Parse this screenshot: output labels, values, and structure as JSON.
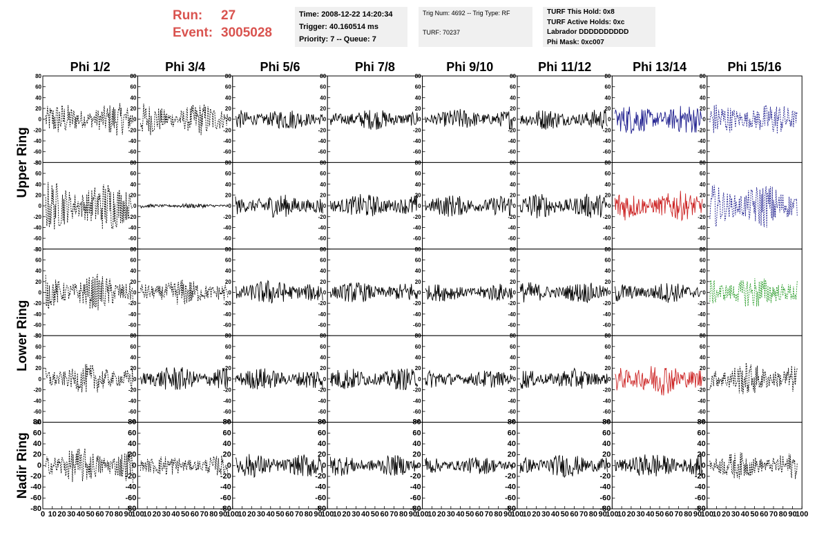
{
  "header": {
    "run_label": "Run:",
    "run_value": "27",
    "event_label": "Event:",
    "event_value": "3005028",
    "info1": [
      "Time: 2008-12-22 14:20:34",
      "Trigger: 40.160514 ms",
      "Priority: 7 -- Queue: 7"
    ],
    "info2": [
      "Trig Num: 4692 -- Trig Type: RF",
      "TURF: 70237"
    ],
    "info3": [
      "TURF This Hold: 0x8",
      "TURF Active Holds: 0xc",
      "Labrador DDDDDDDDDD",
      "Phi Mask: 0xc007"
    ],
    "colors": {
      "run_text": "#d9534f",
      "box_bg": "#f0f0f0"
    }
  },
  "chart_data": {
    "type": "line",
    "column_titles": [
      "Phi 1/2",
      "Phi 3/4",
      "Phi 5/6",
      "Phi 7/8",
      "Phi 9/10",
      "Phi 11/12",
      "Phi 13/14",
      "Phi 15/16"
    ],
    "row_groups": [
      {
        "label": "Upper Ring",
        "rows": [
          0,
          1
        ]
      },
      {
        "label": "Lower Ring",
        "rows": [
          2,
          3
        ]
      },
      {
        "label": "Nadir Ring",
        "rows": [
          4
        ]
      }
    ],
    "xlim": [
      0,
      100
    ],
    "ylim": [
      -80,
      80
    ],
    "y_ticks": [
      80,
      60,
      40,
      20,
      0,
      -20,
      -40,
      -60,
      -80
    ],
    "x_ticks": [
      0,
      10,
      20,
      30,
      40,
      50,
      60,
      70,
      80,
      90,
      100
    ],
    "series_colors": {
      "black": "#000000",
      "blue": "#1a1a8c",
      "red": "#cc2222",
      "green": "#229922"
    },
    "panels": [
      [
        {
          "style": "dashed",
          "color": "black",
          "amp": 22
        },
        {
          "style": "dashed",
          "color": "black",
          "amp": 22
        },
        {
          "style": "solid",
          "color": "black",
          "amp": 14
        },
        {
          "style": "solid",
          "color": "black",
          "amp": 14
        },
        {
          "style": "solid",
          "color": "black",
          "amp": 14
        },
        {
          "style": "solid",
          "color": "black",
          "amp": 14
        },
        {
          "style": "solid",
          "color": "blue",
          "amp": 20
        },
        {
          "style": "dashed",
          "color": "blue",
          "amp": 22
        }
      ],
      [
        {
          "style": "dashed",
          "color": "black",
          "amp": 34
        },
        {
          "style": "solid",
          "color": "black",
          "amp": 3
        },
        {
          "style": "solid",
          "color": "black",
          "amp": 16
        },
        {
          "style": "solid",
          "color": "black",
          "amp": 16
        },
        {
          "style": "solid",
          "color": "black",
          "amp": 15
        },
        {
          "style": "solid",
          "color": "black",
          "amp": 17
        },
        {
          "style": "solid",
          "color": "red",
          "amp": 20
        },
        {
          "style": "dashed",
          "color": "blue",
          "amp": 30
        }
      ],
      [
        {
          "style": "dashed",
          "color": "black",
          "amp": 24
        },
        {
          "style": "dashed",
          "color": "black",
          "amp": 18
        },
        {
          "style": "solid",
          "color": "black",
          "amp": 17
        },
        {
          "style": "solid",
          "color": "black",
          "amp": 14
        },
        {
          "style": "solid",
          "color": "black",
          "amp": 12
        },
        {
          "style": "solid",
          "color": "black",
          "amp": 14
        },
        {
          "style": "solid",
          "color": "black",
          "amp": 14
        },
        {
          "style": "dashed",
          "color": "green",
          "amp": 22
        }
      ],
      [
        {
          "style": "dashed",
          "color": "black",
          "amp": 20
        },
        {
          "style": "solid",
          "color": "black",
          "amp": 17
        },
        {
          "style": "solid",
          "color": "black",
          "amp": 15
        },
        {
          "style": "solid",
          "color": "black",
          "amp": 15
        },
        {
          "style": "solid",
          "color": "black",
          "amp": 12
        },
        {
          "style": "solid",
          "color": "black",
          "amp": 14
        },
        {
          "style": "solid",
          "color": "red",
          "amp": 22
        },
        {
          "style": "dashed",
          "color": "black",
          "amp": 22
        }
      ],
      [
        {
          "style": "dashed",
          "color": "black",
          "amp": 24
        },
        {
          "style": "dashed",
          "color": "black",
          "amp": 14
        },
        {
          "style": "solid",
          "color": "black",
          "amp": 16
        },
        {
          "style": "solid",
          "color": "black",
          "amp": 14
        },
        {
          "style": "solid",
          "color": "black",
          "amp": 12
        },
        {
          "style": "solid",
          "color": "black",
          "amp": 16
        },
        {
          "style": "solid",
          "color": "black",
          "amp": 17
        },
        {
          "style": "dashed",
          "color": "black",
          "amp": 18
        }
      ]
    ]
  }
}
